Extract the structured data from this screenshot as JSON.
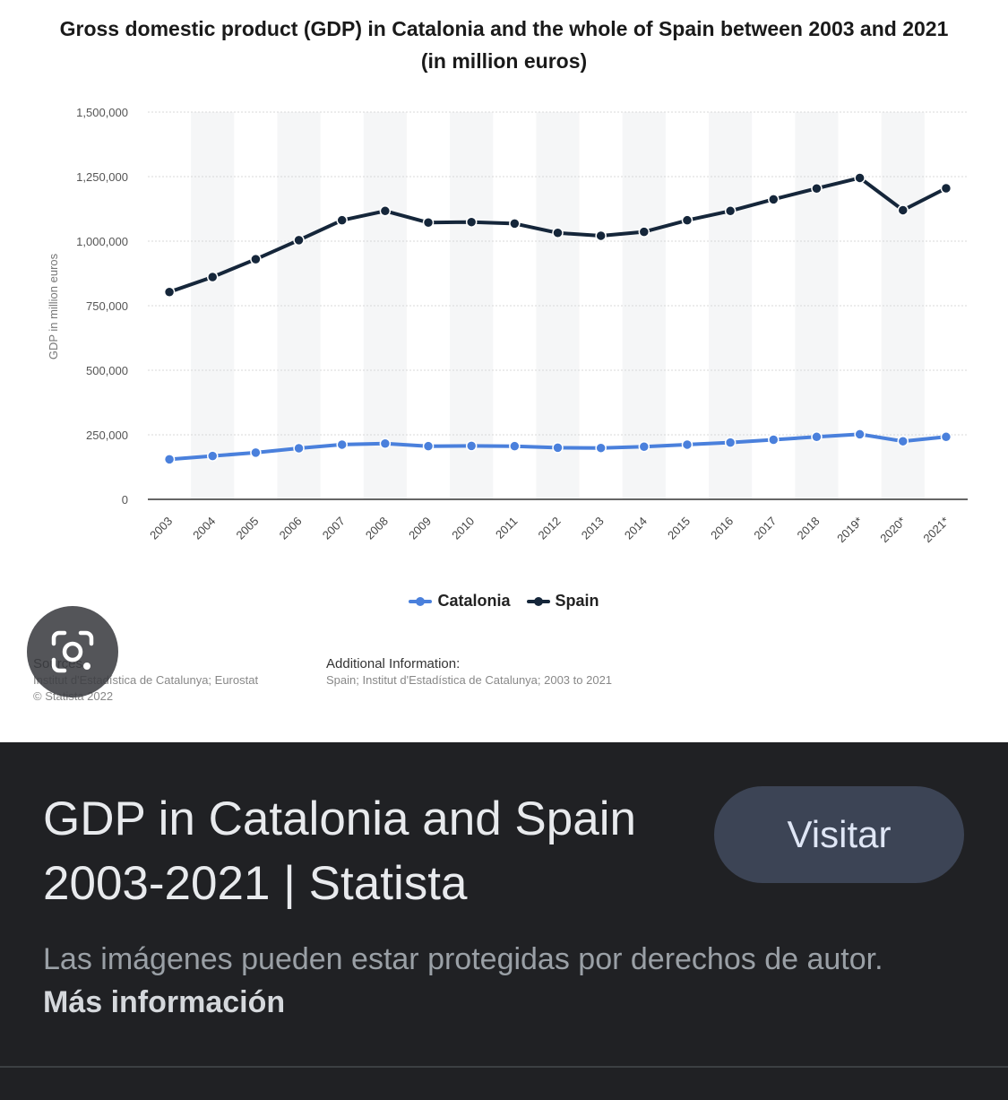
{
  "image_panel": {
    "chart_data": {
      "type": "line",
      "title": "Gross domestic product (GDP) in Catalonia and the whole of Spain between 2003 and 2021 (in million euros)",
      "ylabel": "GDP in million euros",
      "xlabel": "",
      "categories": [
        "2003",
        "2004",
        "2005",
        "2006",
        "2007",
        "2008",
        "2009",
        "2010",
        "2011",
        "2012",
        "2013",
        "2014",
        "2015",
        "2016",
        "2017",
        "2018",
        "2019*",
        "2020*",
        "2021*"
      ],
      "y_ticks": [
        "0",
        "250,000",
        "500,000",
        "750,000",
        "1,000,000",
        "1,250,000",
        "1,500,000"
      ],
      "ylim": [
        0,
        1500000
      ],
      "grid": true,
      "legend_position": "bottom",
      "series": [
        {
          "name": "Catalonia",
          "color": "#4a80dc",
          "values": [
            155000,
            168000,
            181000,
            198000,
            212000,
            216000,
            206000,
            207000,
            206000,
            200000,
            199000,
            204000,
            212000,
            220000,
            231000,
            242000,
            252000,
            225000,
            242000
          ]
        },
        {
          "name": "Spain",
          "color": "#15263a",
          "values": [
            803000,
            861000,
            930000,
            1004000,
            1081000,
            1117000,
            1072000,
            1074000,
            1068000,
            1032000,
            1021000,
            1036000,
            1081000,
            1117000,
            1162000,
            1204000,
            1245000,
            1120000,
            1205000
          ]
        }
      ]
    },
    "sources": {
      "title": "Sources",
      "line1": "Institut d'Estadística de Catalunya; Eurostat",
      "line2": "© Statista 2022"
    },
    "additional_info": {
      "title": "Additional Information:",
      "line1": "Spain; Institut d'Estadística de Catalunya; 2003 to 2021"
    },
    "lens_icon": "lens-search-icon"
  },
  "result": {
    "title": "GDP in Catalonia and Spain 2003-2021 | Statista",
    "visit_label": "Visitar",
    "copyright_text": "Las imágenes pueden estar protegidas por derechos de autor.",
    "more_info_label": "Más información"
  }
}
